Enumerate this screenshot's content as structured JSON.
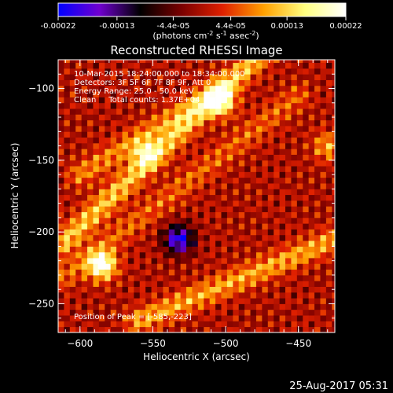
{
  "colorbar": {
    "tick_labels": [
      "-0.00022",
      "-0.00013",
      "-4.4e-05",
      "4.4e-05",
      "0.00013",
      "0.00022"
    ],
    "tick_values": [
      -0.00022,
      -0.00013,
      -4.4e-05,
      4.4e-05,
      0.00013,
      0.00022
    ],
    "range": [
      -0.00022,
      0.00022
    ],
    "unit_prefix": "(photons cm",
    "unit_sup1": "-2",
    "unit_mid": " s",
    "unit_sup2": "-1",
    "unit_mid2": " asec",
    "unit_sup3": "-2",
    "unit_suffix": ")",
    "colormap": [
      "#0000ff",
      "#7000d0",
      "#000000",
      "#7a0000",
      "#e02000",
      "#ffa000",
      "#ffff80",
      "#ffffff"
    ]
  },
  "chart_data": {
    "type": "heatmap",
    "title": "Reconstructed RHESSI Image",
    "xlabel": "Heliocentric X (arcsec)",
    "ylabel": "Heliocentric Y (arcsec)",
    "xlim": [
      -615,
      -425
    ],
    "ylim": [
      -270,
      -80
    ],
    "x_ticks": [
      -600,
      -550,
      -500,
      -450
    ],
    "x_tick_labels": [
      "−600",
      "−550",
      "−500",
      "−450"
    ],
    "y_ticks": [
      -100,
      -150,
      -200,
      -250
    ],
    "y_tick_labels": [
      "−100",
      "−150",
      "−200",
      "−250"
    ],
    "info_lines": [
      "10-Mar-2015 18:24:00.000 to 18:34:00.000",
      "Detectors: 3F 5F 6F 7F 8F 9F, Att 0",
      "Energy Range: 25.0 - 50.0 keV",
      "Clean     Total counts: 1.37E+04"
    ],
    "peak_label": "Position of Peak = [-585,-223]",
    "peak_position": [
      -585,
      -223
    ],
    "peak_value": 0.00022,
    "features": [
      {
        "shape": "ridge",
        "from": [
          -612,
          -208
        ],
        "to": [
          -470,
          -70
        ],
        "amplitude": 0.00012
      },
      {
        "shape": "ridge",
        "from": [
          -612,
          -232
        ],
        "to": [
          -450,
          -105
        ],
        "amplitude": 6e-05
      },
      {
        "shape": "ridge",
        "from": [
          -560,
          -262
        ],
        "to": [
          -425,
          -205
        ],
        "amplitude": 0.0001
      },
      {
        "shape": "ridge",
        "from": [
          -600,
          -160
        ],
        "to": [
          -505,
          -100
        ],
        "amplitude": 8e-05
      },
      {
        "shape": "spot",
        "center": [
          -585,
          -223
        ],
        "amplitude": 0.00022
      },
      {
        "shape": "spot",
        "center": [
          -503,
          -110
        ],
        "amplitude": 0.00015
      },
      {
        "shape": "spot",
        "center": [
          -555,
          -145
        ],
        "amplitude": 0.00012
      },
      {
        "shape": "spot",
        "center": [
          -430,
          -140
        ],
        "amplitude": 0.0001
      },
      {
        "shape": "spot",
        "center": [
          -532,
          -205
        ],
        "amplitude": -0.0002
      }
    ]
  },
  "timestamp": "25-Aug-2017 05:31"
}
